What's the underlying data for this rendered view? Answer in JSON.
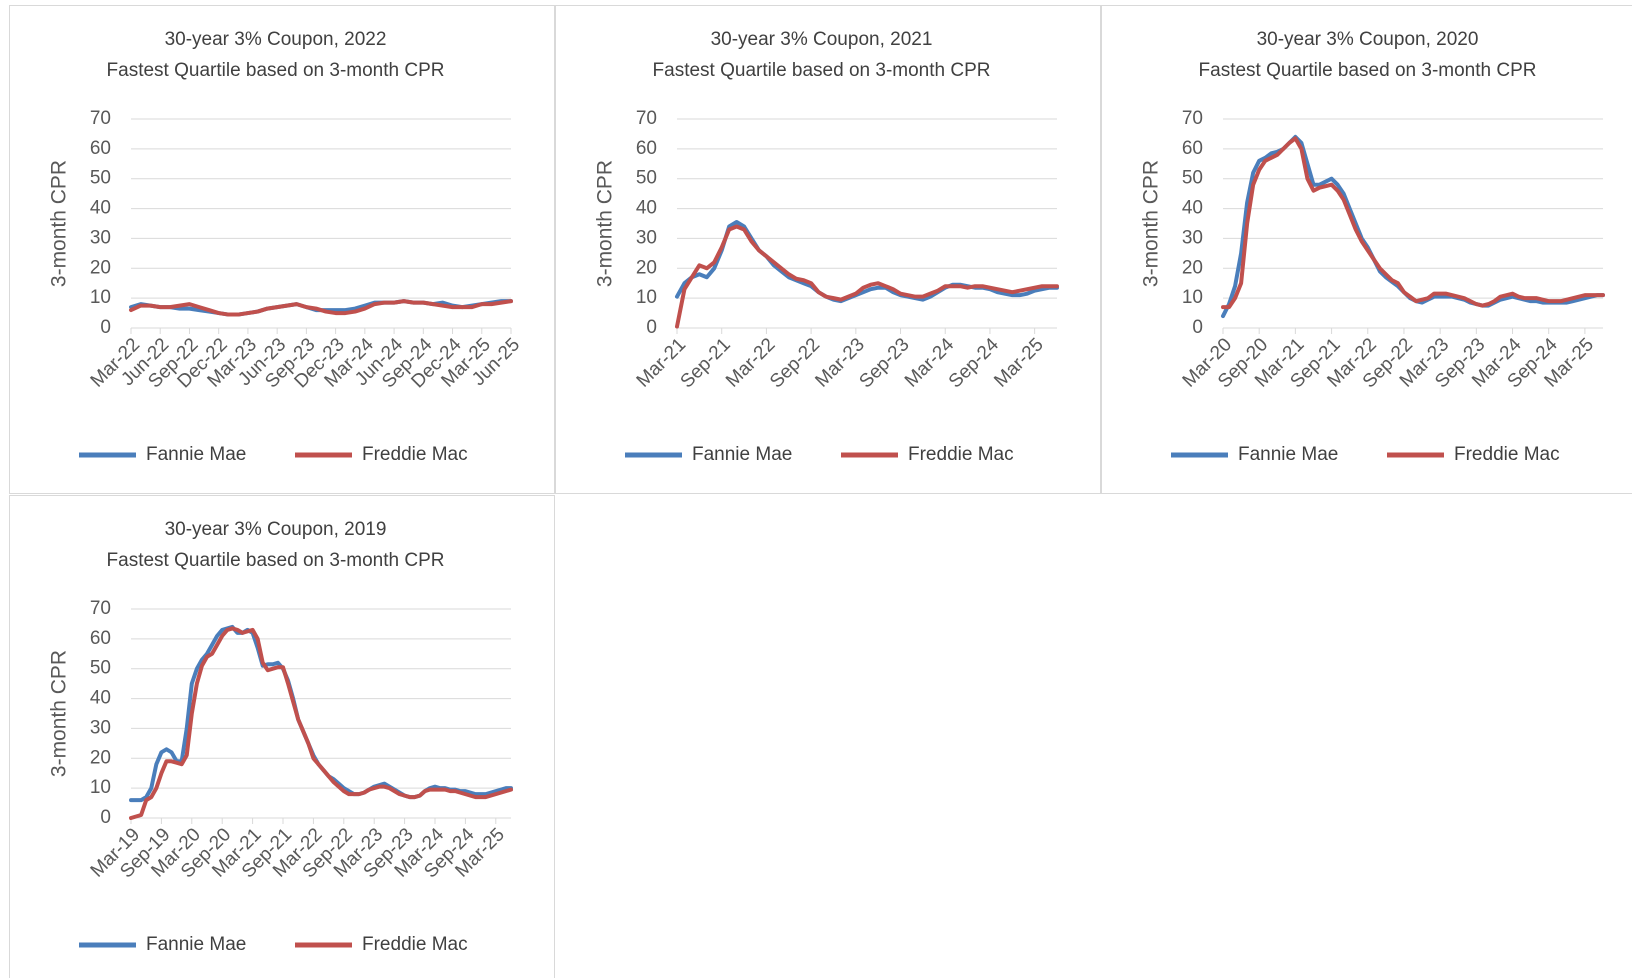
{
  "chart_data": [
    {
      "type": "line",
      "title": "30-year 3% Coupon, 2022",
      "subtitle": "Fastest Quartile based on 3-month CPR",
      "y_label": "3-month CPR",
      "categories": [
        "Mar-22",
        null,
        null,
        "Jun-22",
        null,
        null,
        "Sep-22",
        null,
        null,
        "Dec-22",
        null,
        null,
        "Mar-23",
        null,
        null,
        "Jun-23",
        null,
        null,
        "Sep-23",
        null,
        null,
        "Dec-23",
        null,
        null,
        "Mar-24",
        null,
        null,
        "Jun-24",
        null,
        null,
        "Sep-24",
        null,
        null,
        "Dec-24",
        null,
        null,
        "Mar-25",
        null,
        null,
        "Jun-25"
      ],
      "series": [
        {
          "name": "Fannie Mae",
          "color": "#4a7ebb",
          "values": [
            7,
            8,
            7.5,
            7,
            7,
            6.5,
            6.5,
            6,
            5.5,
            5,
            4.5,
            4.5,
            5,
            5.5,
            6.5,
            7,
            7.5,
            8,
            7,
            6,
            6,
            6,
            6,
            6.5,
            7.5,
            8.5,
            8.5,
            8.5,
            9,
            8.5,
            8.5,
            8,
            8.5,
            7.5,
            7,
            7.5,
            8,
            8.5,
            9,
            9
          ]
        },
        {
          "name": "Freddie Mac",
          "color": "#c0504d",
          "values": [
            6,
            7.5,
            7.5,
            7,
            7,
            7.5,
            8,
            7,
            6,
            5,
            4.5,
            4.5,
            5,
            5.5,
            6.5,
            7,
            7.5,
            8,
            7,
            6.5,
            5.5,
            5,
            5,
            5.5,
            6.5,
            8,
            8.5,
            8.5,
            9,
            8.5,
            8.5,
            8,
            7.5,
            7,
            7,
            7,
            8,
            8,
            8.5,
            9
          ]
        }
      ],
      "ylim": [
        0,
        70
      ],
      "yticks": [
        0,
        10,
        20,
        30,
        40,
        50,
        60,
        70
      ],
      "grid": true,
      "legend": "bottom"
    },
    {
      "type": "line",
      "title": "30-year 3% Coupon, 2021",
      "subtitle": "Fastest Quartile based on 3-month CPR",
      "y_label": "3-month CPR",
      "categories": [
        "Mar-21",
        null,
        null,
        null,
        null,
        null,
        "Sep-21",
        null,
        null,
        null,
        null,
        null,
        "Mar-22",
        null,
        null,
        null,
        null,
        null,
        "Sep-22",
        null,
        null,
        null,
        null,
        null,
        "Mar-23",
        null,
        null,
        null,
        null,
        null,
        "Sep-23",
        null,
        null,
        null,
        null,
        null,
        "Mar-24",
        null,
        null,
        null,
        null,
        null,
        "Sep-24",
        null,
        null,
        null,
        null,
        null,
        "Mar-25",
        null,
        null,
        null
      ],
      "series": [
        {
          "name": "Fannie Mae",
          "color": "#4a7ebb",
          "values": [
            10.5,
            15,
            17,
            18,
            17,
            20,
            26,
            34,
            35.5,
            34,
            30,
            26,
            24,
            21,
            19,
            17,
            16,
            15,
            14,
            12,
            10.5,
            9.5,
            9,
            10,
            11,
            12,
            13,
            13.5,
            13.5,
            12,
            11,
            10.5,
            10,
            9.5,
            10.5,
            12,
            13.5,
            14.5,
            14.5,
            14,
            13.5,
            13.5,
            13,
            12,
            11.5,
            11,
            11,
            11.5,
            12.5,
            13,
            13.5,
            13.5
          ]
        },
        {
          "name": "Freddie Mac",
          "color": "#c0504d",
          "values": [
            0.5,
            13,
            17,
            21,
            20,
            22,
            27,
            33,
            34,
            33,
            29,
            26,
            24,
            22,
            20,
            18,
            16.5,
            16,
            15,
            12,
            10.5,
            10,
            9.5,
            10.5,
            11.5,
            13.5,
            14.5,
            15,
            14,
            13,
            11.5,
            11,
            10.5,
            10.5,
            11.5,
            12.5,
            14,
            14,
            14,
            13.5,
            14,
            14,
            13.5,
            13,
            12.5,
            12,
            12.5,
            13,
            13.5,
            14,
            14,
            14
          ]
        }
      ],
      "ylim": [
        0,
        70
      ],
      "yticks": [
        0,
        10,
        20,
        30,
        40,
        50,
        60,
        70
      ],
      "grid": true,
      "legend": "bottom"
    },
    {
      "type": "line",
      "title": "30-year 3% Coupon, 2020",
      "subtitle": "Fastest Quartile based on 3-month CPR",
      "y_label": "3-month CPR",
      "categories": [
        "Mar-20",
        null,
        null,
        null,
        null,
        null,
        "Sep-20",
        null,
        null,
        null,
        null,
        null,
        "Mar-21",
        null,
        null,
        null,
        null,
        null,
        "Sep-21",
        null,
        null,
        null,
        null,
        null,
        "Mar-22",
        null,
        null,
        null,
        null,
        null,
        "Sep-22",
        null,
        null,
        null,
        null,
        null,
        "Mar-23",
        null,
        null,
        null,
        null,
        null,
        "Sep-23",
        null,
        null,
        null,
        null,
        null,
        "Mar-24",
        null,
        null,
        null,
        null,
        null,
        "Sep-24",
        null,
        null,
        null,
        null,
        null,
        "Mar-25",
        null,
        null,
        null
      ],
      "series": [
        {
          "name": "Fannie Mae",
          "color": "#4a7ebb",
          "values": [
            4,
            8,
            14,
            25,
            42,
            52,
            56,
            57,
            58.5,
            59,
            60,
            62,
            64,
            62,
            55,
            48,
            48,
            49,
            50,
            48,
            45,
            40,
            35,
            30,
            27,
            23,
            19,
            17,
            15.5,
            14,
            12,
            10,
            9,
            8.5,
            9.5,
            10.5,
            10.5,
            10.5,
            10.5,
            10,
            9.5,
            8.5,
            8,
            7.5,
            7.5,
            8.5,
            9.5,
            10,
            10.5,
            10,
            9.5,
            9,
            9,
            8.5,
            8.5,
            8.5,
            8.5,
            8.5,
            9,
            9.5,
            10,
            10.5,
            11,
            11
          ]
        },
        {
          "name": "Freddie Mac",
          "color": "#c0504d",
          "values": [
            7,
            7,
            10,
            15,
            35,
            48,
            53,
            56,
            57,
            58,
            60,
            62,
            63.5,
            60,
            50,
            46,
            47,
            47.5,
            48,
            46,
            43,
            38,
            33,
            29,
            26,
            23,
            20,
            18,
            16,
            15,
            12,
            10.5,
            9,
            9.5,
            10,
            11.5,
            11.5,
            11.5,
            11,
            10.5,
            10,
            9,
            8,
            7.5,
            8,
            9,
            10.5,
            11,
            11.5,
            10.5,
            10,
            10,
            10,
            9.5,
            9,
            9,
            9,
            9.5,
            10,
            10.5,
            11,
            11,
            11,
            11
          ]
        }
      ],
      "ylim": [
        0,
        70
      ],
      "yticks": [
        0,
        10,
        20,
        30,
        40,
        50,
        60,
        70
      ],
      "grid": true,
      "legend": "bottom"
    },
    {
      "type": "line",
      "title": "30-year 3% Coupon, 2019",
      "subtitle": "Fastest Quartile based on 3-month CPR",
      "y_label": "3-month CPR",
      "categories": [
        "Mar-19",
        null,
        null,
        null,
        null,
        null,
        "Sep-19",
        null,
        null,
        null,
        null,
        null,
        "Mar-20",
        null,
        null,
        null,
        null,
        null,
        "Sep-20",
        null,
        null,
        null,
        null,
        null,
        "Mar-21",
        null,
        null,
        null,
        null,
        null,
        "Sep-21",
        null,
        null,
        null,
        null,
        null,
        "Mar-22",
        null,
        null,
        null,
        null,
        null,
        "Sep-22",
        null,
        null,
        null,
        null,
        null,
        "Mar-23",
        null,
        null,
        null,
        null,
        null,
        "Sep-23",
        null,
        null,
        null,
        null,
        null,
        "Mar-24",
        null,
        null,
        null,
        null,
        null,
        "Sep-24",
        null,
        null,
        null,
        null,
        null,
        "Mar-25",
        null,
        null,
        null
      ],
      "series": [
        {
          "name": "Fannie Mae",
          "color": "#4a7ebb",
          "values": [
            6,
            6,
            6,
            7,
            10,
            18,
            22,
            23,
            22,
            19,
            19,
            30,
            45,
            50,
            53,
            55,
            58,
            61,
            63,
            63.5,
            64,
            62,
            62,
            63,
            62,
            57,
            51,
            51.5,
            51.5,
            52,
            50,
            46,
            40,
            33,
            29,
            25,
            21,
            18,
            16,
            14,
            13,
            11.5,
            10,
            9,
            8,
            8,
            8.5,
            9.5,
            10.5,
            11,
            11.5,
            10.5,
            9.5,
            8.5,
            7.5,
            7,
            7,
            7.5,
            9,
            10,
            10.5,
            10,
            10,
            9.5,
            9.5,
            9,
            9,
            8.5,
            8,
            8,
            8,
            8.5,
            9,
            9.5,
            10,
            10
          ]
        },
        {
          "name": "Freddie Mac",
          "color": "#c0504d",
          "values": [
            0,
            0.5,
            1,
            6,
            7,
            10,
            15,
            19,
            19,
            18.5,
            18,
            21,
            35,
            45,
            51,
            54,
            55,
            58,
            61,
            63,
            63.5,
            63,
            62,
            62.5,
            63,
            60,
            52,
            49.5,
            50,
            50.5,
            50.5,
            45,
            39,
            33,
            29,
            25,
            20,
            18,
            16,
            14,
            12,
            10.5,
            9,
            8,
            8,
            8,
            8.5,
            9.5,
            10,
            10.5,
            10.5,
            10,
            9,
            8,
            7.5,
            7,
            7,
            7.5,
            9,
            9.5,
            9.5,
            9.5,
            9.5,
            9,
            9,
            8.5,
            8,
            7.5,
            7,
            7,
            7,
            7.5,
            8,
            8.5,
            9,
            9.5
          ]
        }
      ],
      "ylim": [
        0,
        70
      ],
      "yticks": [
        0,
        10,
        20,
        30,
        40,
        50,
        60,
        70
      ],
      "grid": true,
      "legend": "bottom"
    }
  ]
}
